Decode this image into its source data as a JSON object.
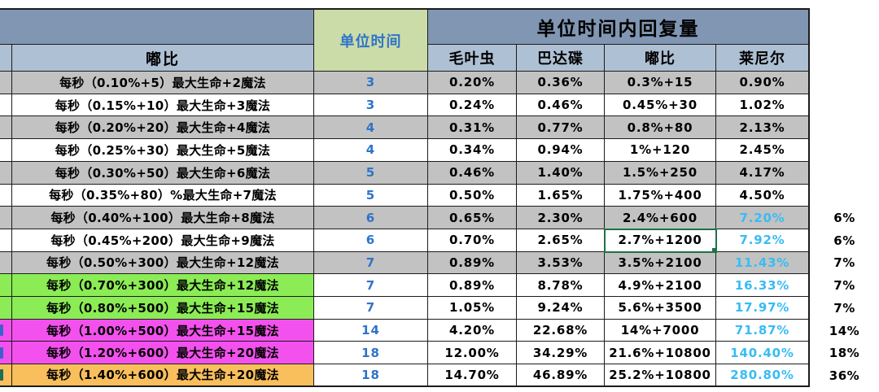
{
  "header": {
    "corner_label": "",
    "name_col_label": "嘟比",
    "unit_time_label": "单位时间",
    "recovery_label": "单位时间内回复量",
    "columns": [
      "毛叶虫",
      "巴达碟",
      "嘟比",
      "莱尼尔"
    ]
  },
  "colors": {
    "header_dark": "#8096B3",
    "header_light": "#AEC0D3",
    "unit_header_bg": "#CBDCA8",
    "unit_header_text": "#2E74C9",
    "unit_value_blue": "#2E74C9",
    "lainier_cyan": "#38BCF4",
    "row_gray": "#C2C2C2",
    "row_white": "#ffffff",
    "row_green": "#8BEC55",
    "row_magenta": "#F351EE",
    "row_orange": "#F8BF5C",
    "selection_green": "#1F7246",
    "grid_border": "#1c1c1c"
  },
  "table": {
    "rows": [
      {
        "formula": "每秒（0.10%+5）最大生命+2魔法",
        "unit_time": "3",
        "maoyechong": "0.20%",
        "badadie": "0.36%",
        "dubi": "0.3%+15",
        "lainier": "0.90%",
        "note": "",
        "band": "gray",
        "lainier_blue": false,
        "selected": false,
        "edge_mark": ""
      },
      {
        "formula": "每秒（0.15%+10）最大生命+3魔法",
        "unit_time": "3",
        "maoyechong": "0.24%",
        "badadie": "0.46%",
        "dubi": "0.45%+30",
        "lainier": "1.02%",
        "note": "",
        "band": "white",
        "lainier_blue": false,
        "selected": false,
        "edge_mark": ""
      },
      {
        "formula": "每秒（0.20%+20）最大生命+4魔法",
        "unit_time": "4",
        "maoyechong": "0.31%",
        "badadie": "0.77%",
        "dubi": "0.8%+80",
        "lainier": "2.13%",
        "note": "",
        "band": "gray",
        "lainier_blue": false,
        "selected": false,
        "edge_mark": ""
      },
      {
        "formula": "每秒（0.25%+30）最大生命+5魔法",
        "unit_time": "4",
        "maoyechong": "0.34%",
        "badadie": "0.94%",
        "dubi": "1%+120",
        "lainier": "2.45%",
        "note": "",
        "band": "white",
        "lainier_blue": false,
        "selected": false,
        "edge_mark": ""
      },
      {
        "formula": "每秒（0.30%+50）最大生命+6魔法",
        "unit_time": "5",
        "maoyechong": "0.46%",
        "badadie": "1.40%",
        "dubi": "1.5%+250",
        "lainier": "4.17%",
        "note": "",
        "band": "gray",
        "lainier_blue": false,
        "selected": false,
        "edge_mark": ""
      },
      {
        "formula": "每秒（0.35%+80）%最大生命+7魔法",
        "unit_time": "5",
        "maoyechong": "0.50%",
        "badadie": "1.65%",
        "dubi": "1.75%+400",
        "lainier": "4.50%",
        "note": "",
        "band": "white",
        "lainier_blue": false,
        "selected": false,
        "edge_mark": ""
      },
      {
        "formula": "每秒（0.40%+100）最大生命+8魔法",
        "unit_time": "6",
        "maoyechong": "0.65%",
        "badadie": "2.30%",
        "dubi": "2.4%+600",
        "lainier": "7.20%",
        "note": "6%",
        "band": "gray",
        "lainier_blue": true,
        "selected": false,
        "edge_mark": ""
      },
      {
        "formula": "每秒（0.45%+200）最大生命+9魔法",
        "unit_time": "6",
        "maoyechong": "0.70%",
        "badadie": "2.65%",
        "dubi": "2.7%+1200",
        "lainier": "7.92%",
        "note": "6%",
        "band": "white",
        "lainier_blue": true,
        "selected": true,
        "edge_mark": ""
      },
      {
        "formula": "每秒（0.50%+300）最大生命+12魔法",
        "unit_time": "7",
        "maoyechong": "0.89%",
        "badadie": "3.53%",
        "dubi": "3.5%+2100",
        "lainier": "11.43%",
        "note": "7%",
        "band": "gray",
        "lainier_blue": true,
        "selected": false,
        "edge_mark": ""
      },
      {
        "formula": "每秒（0.70%+300）最大生命+12魔法",
        "unit_time": "7",
        "maoyechong": "0.89%",
        "badadie": "8.78%",
        "dubi": "4.9%+2100",
        "lainier": "16.33%",
        "note": "7%",
        "band": "green",
        "lainier_blue": true,
        "selected": false,
        "edge_mark": ""
      },
      {
        "formula": "每秒（0.80%+500）最大生命+15魔法",
        "unit_time": "7",
        "maoyechong": "1.05%",
        "badadie": "9.24%",
        "dubi": "5.6%+3500",
        "lainier": "17.97%",
        "note": "7%",
        "band": "green",
        "lainier_blue": true,
        "selected": false,
        "edge_mark": ""
      },
      {
        "formula": "每秒（1.00%+500）最大生命+15魔法",
        "unit_time": "14",
        "maoyechong": "4.20%",
        "badadie": "22.68%",
        "dubi": "14%+7000",
        "lainier": "71.87%",
        "note": "14%",
        "band": "magenta",
        "lainier_blue": true,
        "selected": false,
        "edge_mark": "#3b62c9"
      },
      {
        "formula": "每秒（1.20%+600）最大生命+20魔法",
        "unit_time": "18",
        "maoyechong": "12.00%",
        "badadie": "34.29%",
        "dubi": "21.6%+10800",
        "lainier": "140.40%",
        "note": "18%",
        "band": "magenta",
        "lainier_blue": true,
        "selected": false,
        "edge_mark": "#3b62c9"
      },
      {
        "formula": "每秒（1.40%+600）最大生命+20魔法",
        "unit_time": "18",
        "maoyechong": "14.70%",
        "badadie": "46.89%",
        "dubi": "25.2%+10800",
        "lainier": "280.80%",
        "note": "36%",
        "band": "orange",
        "lainier_blue": true,
        "selected": false,
        "edge_mark": "#1d6e54"
      }
    ]
  }
}
